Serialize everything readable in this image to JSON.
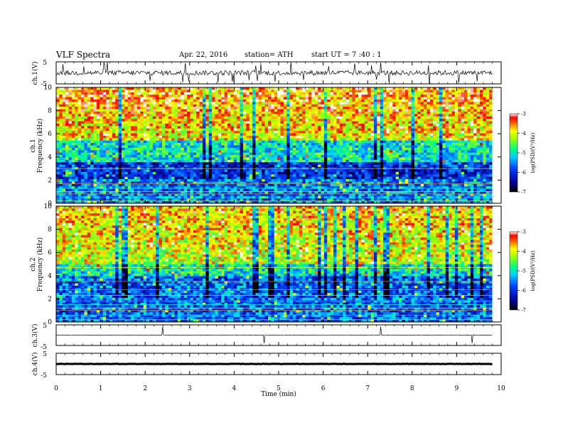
{
  "header": {
    "title": "VLF  Spectra",
    "date": "Apr. 22, 2016",
    "station": "station= ATH",
    "start": "start  UT  =   7  :40 : 1"
  },
  "panels": {
    "ch1v_label": "ch.1(V)",
    "ch1_label": "ch.1",
    "ch2_label": "ch.2",
    "ch3v_label": "ch.3(V)",
    "ch4v_label": "ch.4(V)",
    "freq_label": "Frequency  (kHz)",
    "colorbar_label": "log(PSD/(V²/Hz)",
    "xlabel": "Time  (min)"
  },
  "chart_data": [
    {
      "type": "line",
      "name": "ch.1(V)",
      "ylabel": "ch.1(V)",
      "ylim": [
        -5,
        5
      ],
      "yticks": [
        "5",
        "-5"
      ],
      "xlim": [
        0,
        10
      ]
    },
    {
      "type": "heatmap",
      "title": "ch.1",
      "ylabel": "Frequency  (kHz)",
      "ylim": [
        0,
        10
      ],
      "yticks": [
        "0",
        "2",
        "4",
        "6",
        "8",
        "10"
      ],
      "xlim": [
        0,
        10
      ],
      "colorbar": {
        "label": "log(PSD/(V²/Hz)",
        "range": [
          -7,
          -3
        ],
        "ticks": [
          "-3",
          "-4",
          "-5",
          "-6",
          "-7"
        ]
      }
    },
    {
      "type": "heatmap",
      "title": "ch.2",
      "ylabel": "Frequency  (kHz)",
      "ylim": [
        0,
        10
      ],
      "yticks": [
        "0",
        "2",
        "4",
        "6",
        "8",
        "10"
      ],
      "xlim": [
        0,
        10
      ],
      "colorbar": {
        "label": "log(PSD/(V²/Hz)",
        "range": [
          -7,
          -3
        ],
        "ticks": [
          "-3",
          "-4",
          "-5",
          "-6",
          "-7"
        ]
      }
    },
    {
      "type": "line",
      "name": "ch.3(V)",
      "ylabel": "ch.3(V)",
      "ylim": [
        -5,
        5
      ],
      "yticks": [
        "5",
        "-5"
      ],
      "xlim": [
        0,
        10
      ]
    },
    {
      "type": "line",
      "name": "ch.4(V)",
      "ylabel": "ch.4(V)",
      "ylim": [
        -5,
        5
      ],
      "yticks": [
        "5",
        "-5"
      ],
      "xlim": [
        0,
        10
      ]
    }
  ],
  "x_axis": {
    "label": "Time  (min)",
    "range": [
      0,
      10
    ],
    "ticks": [
      "0",
      "1",
      "2",
      "3",
      "4",
      "5",
      "6",
      "7",
      "8",
      "9",
      "10"
    ],
    "data_end": 9.8
  }
}
